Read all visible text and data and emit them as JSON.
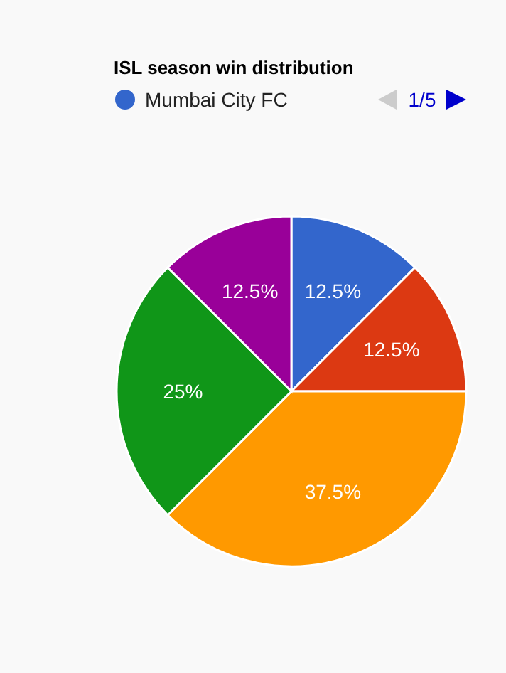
{
  "chart_data": {
    "type": "pie",
    "title": "ISL season win distribution",
    "categories": [
      "Mumbai City FC",
      null,
      null,
      null,
      null
    ],
    "values": [
      12.5,
      12.5,
      37.5,
      25,
      12.5
    ],
    "colors": [
      "#3366cc",
      "#dc3912",
      "#ff9900",
      "#109618",
      "#990099"
    ],
    "value_labels": [
      "12.5%",
      "12.5%",
      "37.5%",
      "25%",
      "12.5%"
    ],
    "legend": "top",
    "annotations": [
      "1/5"
    ]
  }
}
